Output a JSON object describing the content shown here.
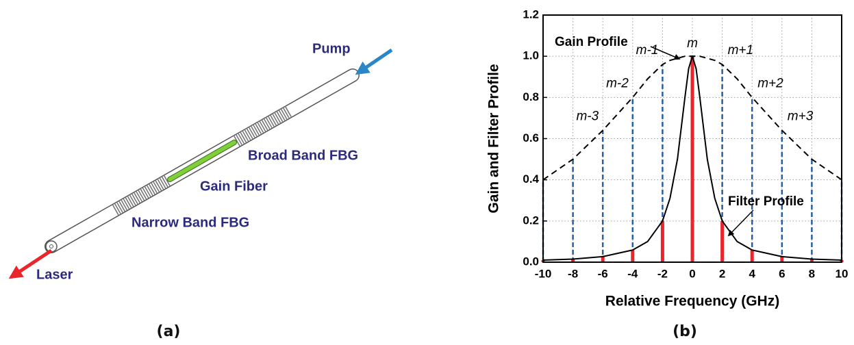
{
  "diagram": {
    "pump": "Pump",
    "broad_band_fbg": "Broad Band FBG",
    "gain_fiber": "Gain Fiber",
    "narrow_band_fbg": "Narrow Band FBG",
    "laser": "Laser",
    "caption": "(a)"
  },
  "chart_data": {
    "type": "line",
    "caption": "(b)",
    "xlabel": "Relative Frequency (GHz)",
    "ylabel": "Gain and Filter Profile",
    "xlim": [
      -10,
      10
    ],
    "ylim": [
      0,
      1.2
    ],
    "xticks": [
      -10,
      -8,
      -6,
      -4,
      -2,
      0,
      2,
      4,
      6,
      8,
      10
    ],
    "yticks": [
      {
        "value": 0,
        "label": "0.0"
      },
      0.2,
      0.4,
      0.6,
      0.8,
      {
        "value": 1,
        "label": "1.0"
      },
      1.2
    ],
    "grid": true,
    "x": [
      -10,
      -8,
      -6,
      -4,
      -3,
      -2,
      -1.5,
      -1,
      -0.5,
      -0.25,
      0,
      0.25,
      0.5,
      1,
      1.5,
      2,
      3,
      4,
      6,
      8,
      10
    ],
    "series": [
      {
        "name": "Gain Profile",
        "color": "#000000",
        "dashed": true,
        "values": [
          0.4,
          0.5,
          0.64,
          0.8,
          0.89,
          0.96,
          0.98,
          0.99,
          1.0,
          1.0,
          1.0,
          1.0,
          1.0,
          0.99,
          0.98,
          0.96,
          0.89,
          0.8,
          0.64,
          0.5,
          0.4
        ]
      },
      {
        "name": "Filter Profile",
        "color": "#000000",
        "dashed": false,
        "values": [
          0.01,
          0.015,
          0.027,
          0.059,
          0.1,
          0.2,
          0.31,
          0.5,
          0.8,
          0.94,
          1.0,
          0.94,
          0.8,
          0.5,
          0.31,
          0.2,
          0.1,
          0.059,
          0.027,
          0.015,
          0.01
        ]
      }
    ],
    "stems": {
      "x": [
        -10,
        -8,
        -6,
        -4,
        -2,
        0,
        2,
        4,
        6,
        8,
        10
      ],
      "gain": [
        0.4,
        0.5,
        0.64,
        0.8,
        0.96,
        1.0,
        0.96,
        0.8,
        0.64,
        0.5,
        0.4
      ],
      "filter": [
        0.01,
        0.015,
        0.027,
        0.059,
        0.2,
        1.0,
        0.2,
        0.059,
        0.027,
        0.015,
        0.01
      ],
      "gain_color": "#2a5f9e",
      "filter_color": "#e8262b",
      "labels": [
        null,
        null,
        "m-3",
        "m-2",
        "m-1",
        "m",
        "m+1",
        "m+2",
        "m+3",
        null,
        null
      ]
    }
  }
}
